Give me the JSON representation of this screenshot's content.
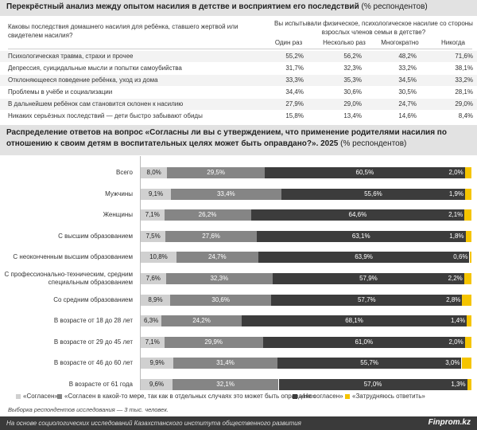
{
  "header": {
    "title_bold": "Перекрёстный анализ между опытом насилия в детстве и восприятием его последствий",
    "title_rest": " (% респондентов)"
  },
  "cross_table": {
    "question_left": "Каковы последствия домашнего насилия для ребёнка, ставшего жертвой или свидетелем насилия?",
    "question_right": "Вы испытывали физическое, психологическое насилие со стороны взрослых членов семьи в детстве?",
    "columns": [
      "Один раз",
      "Несколько раз",
      "Многократно",
      "Никогда"
    ],
    "rows": [
      {
        "label": "Психологическая травма, страхи и прочее",
        "values": [
          "55,2%",
          "56,2%",
          "48,2%",
          "71,6%"
        ]
      },
      {
        "label": "Депрессия, суицидальные мысли и попытки самоубийства",
        "values": [
          "31,7%",
          "32,3%",
          "33,2%",
          "38,1%"
        ]
      },
      {
        "label": "Отклоняющееся поведение ребёнка, уход из дома",
        "values": [
          "33,3%",
          "35,3%",
          "34,5%",
          "33,2%"
        ]
      },
      {
        "label": "Проблемы в учёбе и социализации",
        "values": [
          "34,4%",
          "30,6%",
          "30,5%",
          "28,1%"
        ]
      },
      {
        "label": "В дальнейшем ребёнок сам становится склонен к насилию",
        "values": [
          "27,9%",
          "29,0%",
          "24,7%",
          "29,0%"
        ]
      },
      {
        "label": "Никаких серьёзных последствий — дети быстро забывают обиды",
        "values": [
          "15,8%",
          "13,4%",
          "14,6%",
          "8,4%"
        ]
      }
    ]
  },
  "section": {
    "title_bold": "Распределение ответов на вопрос «Согласны ли вы с утверждением, что применение родителями насилия по отношению к своим детям в воспитательных целях может быть оправдано?». 2025",
    "title_rest": " (% респондентов)"
  },
  "chart_data": {
    "type": "bar",
    "orientation": "horizontal",
    "stacked": true,
    "categories": [
      "Всего",
      "Мужчины",
      "Женщины",
      "С высшим образованием",
      "С неоконченным высшим образованием",
      "С профессионально-техническим, средним специальным образованием",
      "Со средним образованием",
      "В возрасте от 18 до 28 лет",
      "В возрасте от 29 до 45 лет",
      "В возрасте от 46 до 60 лет",
      "В возрасте от 61 года"
    ],
    "series": [
      {
        "name": "«Согласен»",
        "color": "#d0d0d0",
        "values": [
          8.0,
          9.1,
          7.1,
          7.5,
          10.8,
          7.6,
          8.9,
          6.3,
          7.1,
          9.9,
          9.6
        ]
      },
      {
        "name": "«Согласен в какой-то мере, так как в отдельных случаях это может быть оправдано»",
        "color": "#858585",
        "values": [
          29.5,
          33.4,
          26.2,
          27.6,
          24.7,
          32.3,
          30.6,
          24.2,
          29.9,
          31.4,
          32.1
        ]
      },
      {
        "name": "«Не согласен»",
        "color": "#3c3c3c",
        "values": [
          60.5,
          55.6,
          64.6,
          63.1,
          63.9,
          57.9,
          57.7,
          68.1,
          61.0,
          55.7,
          57.0
        ]
      },
      {
        "name": "«Затрудняюсь ответить»",
        "color": "#f5c400",
        "values": [
          2.0,
          1.9,
          2.1,
          1.8,
          0.6,
          2.2,
          2.8,
          1.4,
          2.0,
          3.0,
          1.3
        ]
      }
    ],
    "data_labels": [
      [
        "8,0%",
        "29,5%",
        "60,5%",
        "2,0%"
      ],
      [
        "9,1%",
        "33,4%",
        "55,6%",
        "1,9%"
      ],
      [
        "7,1%",
        "26,2%",
        "64,6%",
        "2,1%"
      ],
      [
        "7,5%",
        "27,6%",
        "63,1%",
        "1,8%"
      ],
      [
        "10,8%",
        "24,7%",
        "63,9%",
        "0,6%"
      ],
      [
        "7,6%",
        "32,3%",
        "57,9%",
        "2,2%"
      ],
      [
        "8,9%",
        "30,6%",
        "57,7%",
        "2,8%"
      ],
      [
        "6,3%",
        "24,2%",
        "68,1%",
        "1,4%"
      ],
      [
        "7,1%",
        "29,9%",
        "61,0%",
        "2,0%"
      ],
      [
        "9,9%",
        "31,4%",
        "55,7%",
        "3,0%"
      ],
      [
        "9,6%",
        "32,1%",
        "57,0%",
        "1,3%"
      ]
    ],
    "legend_position": "bottom"
  },
  "legend": {
    "items": [
      "«Согласен»",
      "«Согласен в какой-то мере, так как в отдельных случаях это может быть оправдано»",
      "«Не согласен»",
      "«Затрудняюсь ответить»"
    ],
    "colors": [
      "#d0d0d0",
      "#858585",
      "#3c3c3c",
      "#f5c400"
    ]
  },
  "note": "Выборка респондентов исследования — 3 тыс. человек.",
  "footer": {
    "source": "На основе социологических исследований Казахстанского института общественного развития",
    "brand": "Finprom.kz"
  }
}
